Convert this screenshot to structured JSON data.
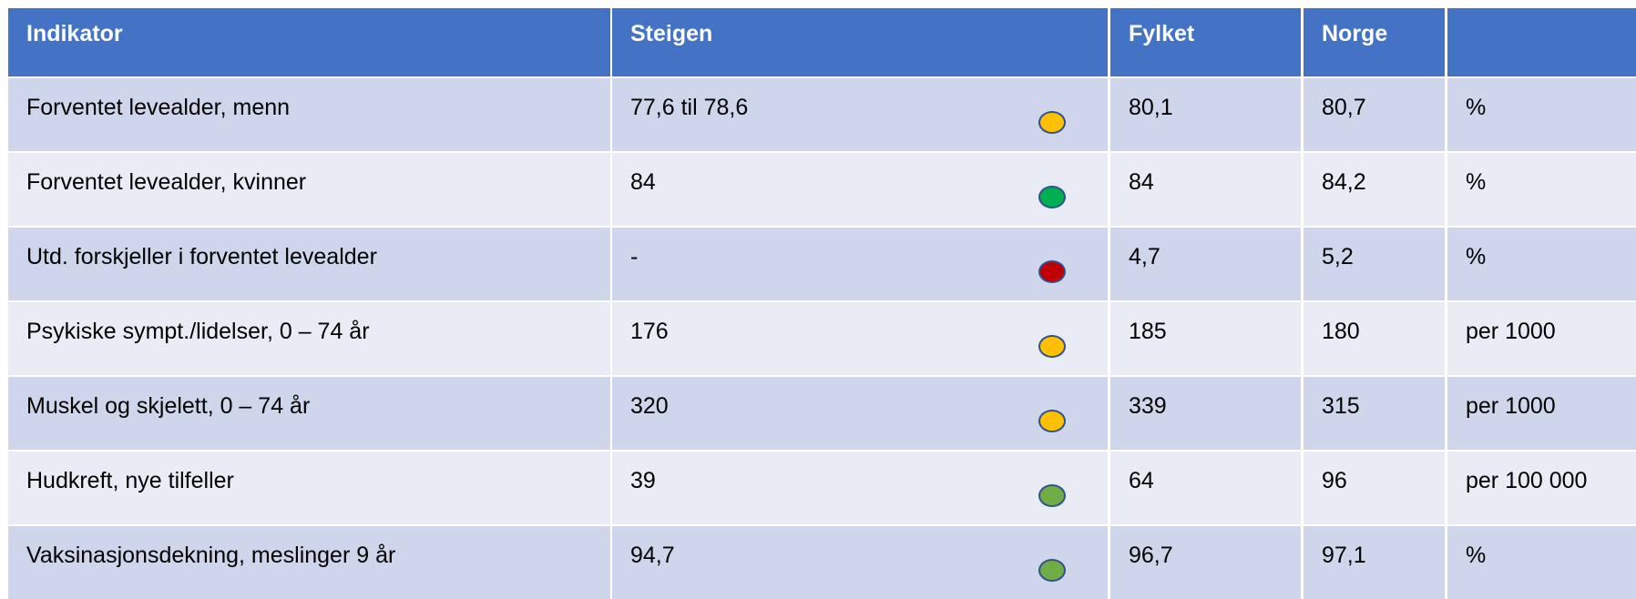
{
  "header": {
    "columns": [
      "Indikator",
      "Steigen",
      "Fylket",
      "Norge"
    ]
  },
  "rows": [
    {
      "cells": [
        "Forventet levealder, menn",
        "77,6 til 78,6",
        "80,1",
        "80,7",
        "%"
      ],
      "status_color": "#ffc000"
    },
    {
      "cells": [
        "Forventet levealder, kvinner",
        "84",
        "84",
        "84,2",
        "%"
      ],
      "status_color": "#00b050"
    },
    {
      "cells": [
        "Utd. forskjeller i forventet levealder",
        "-",
        "4,7",
        "5,2",
        "%"
      ],
      "status_color": "#c00000"
    },
    {
      "cells": [
        "Psykiske sympt./lidelser, 0 – 74 år",
        "176",
        "185",
        "180",
        "per 1000"
      ],
      "status_color": "#ffc000"
    },
    {
      "cells": [
        "Muskel og skjelett, 0 – 74 år",
        "320",
        "339",
        "315",
        "per 1000"
      ],
      "status_color": "#ffc000"
    },
    {
      "cells": [
        "Hudkreft, nye tilfeller",
        "39",
        "64",
        "96",
        "per 100 000"
      ],
      "status_color": "#70ad47"
    },
    {
      "cells": [
        "Vaksinasjonsdekning, meslinger 9 år",
        "94,7",
        "96,7",
        "97,1",
        "%"
      ],
      "status_color": "#70ad47"
    }
  ]
}
